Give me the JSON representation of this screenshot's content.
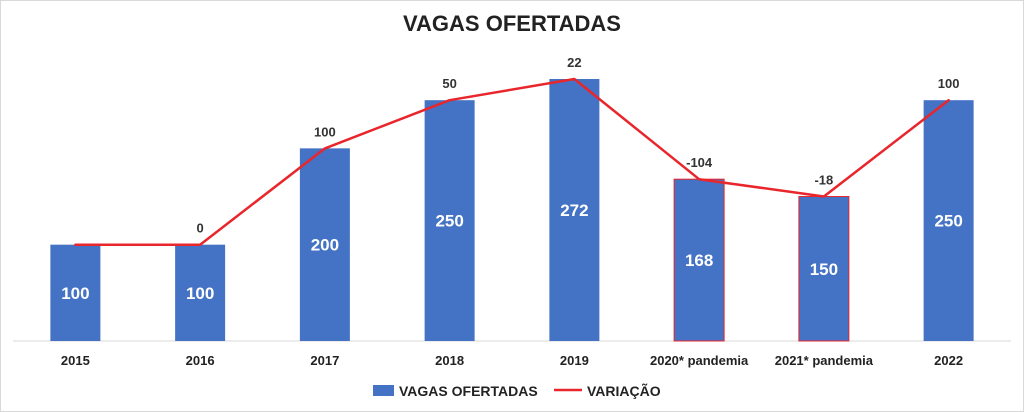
{
  "chart_data": {
    "type": "bar",
    "title": "VAGAS OFERTADAS",
    "categories": [
      "2015",
      "2016",
      "2017",
      "2018",
      "2019",
      "2020* pandemia",
      "2021* pandemia",
      "2022"
    ],
    "series": [
      {
        "name": "VAGAS OFERTADAS",
        "type": "bar",
        "color": "#4472C4",
        "values": [
          100,
          100,
          200,
          250,
          272,
          168,
          150,
          250
        ]
      },
      {
        "name": "VARIAÇÃO",
        "type": "line",
        "color": "#E8262B",
        "values": [
          null,
          0,
          100,
          50,
          22,
          -104,
          -18,
          100
        ]
      }
    ],
    "highlighted_bar_border_color": "#E8262B",
    "highlighted_bars": [
      "2020* pandemia",
      "2021* pandemia"
    ],
    "ylim": [
      0,
      272
    ],
    "legend": "bottom",
    "grid": false,
    "xlabel": "",
    "ylabel": ""
  }
}
